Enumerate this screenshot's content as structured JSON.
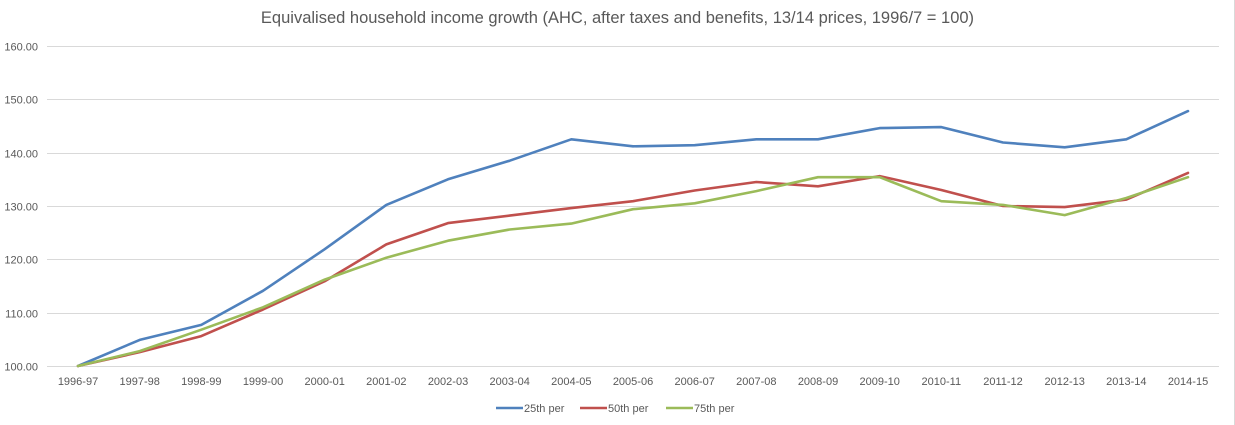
{
  "chart_data": {
    "type": "line",
    "title": "Equivalised household income growth (AHC, after taxes and benefits, 13/14 prices, 1996/7 = 100)",
    "xlabel": "",
    "ylabel": "",
    "ylim": [
      100,
      160
    ],
    "yticks": [
      "100.00",
      "110.00",
      "120.00",
      "130.00",
      "140.00",
      "150.00",
      "160.00"
    ],
    "ytick_values": [
      100,
      110,
      120,
      130,
      140,
      150,
      160
    ],
    "grid": true,
    "legend_position": "bottom",
    "categories": [
      "1996-97",
      "1997-98",
      "1998-99",
      "1999-00",
      "2000-01",
      "2001-02",
      "2002-03",
      "2003-04",
      "2004-05",
      "2005-06",
      "2006-07",
      "2007-08",
      "2008-09",
      "2009-10",
      "2010-11",
      "2011-12",
      "2012-13",
      "2013-14",
      "2014-15"
    ],
    "series": [
      {
        "name": "25th per",
        "color": "#4f81bd",
        "values": [
          100,
          104.9,
          107.7,
          114.1,
          121.9,
          130.2,
          135.0,
          138.5,
          142.5,
          141.2,
          141.4,
          142.5,
          142.5,
          144.6,
          144.8,
          141.9,
          141.0,
          142.5,
          147.8
        ]
      },
      {
        "name": "50th per",
        "color": "#c0504d",
        "values": [
          100,
          102.6,
          105.6,
          110.6,
          115.9,
          122.8,
          126.8,
          128.2,
          129.6,
          130.9,
          132.9,
          134.5,
          133.7,
          135.6,
          133.0,
          130.0,
          129.8,
          131.2,
          136.2
        ]
      },
      {
        "name": "75th per",
        "color": "#9bbb59",
        "values": [
          100,
          102.8,
          106.8,
          111.0,
          116.2,
          120.3,
          123.5,
          125.6,
          126.7,
          129.4,
          130.5,
          132.8,
          135.4,
          135.4,
          130.9,
          130.2,
          128.3,
          131.5,
          135.4
        ]
      }
    ]
  }
}
